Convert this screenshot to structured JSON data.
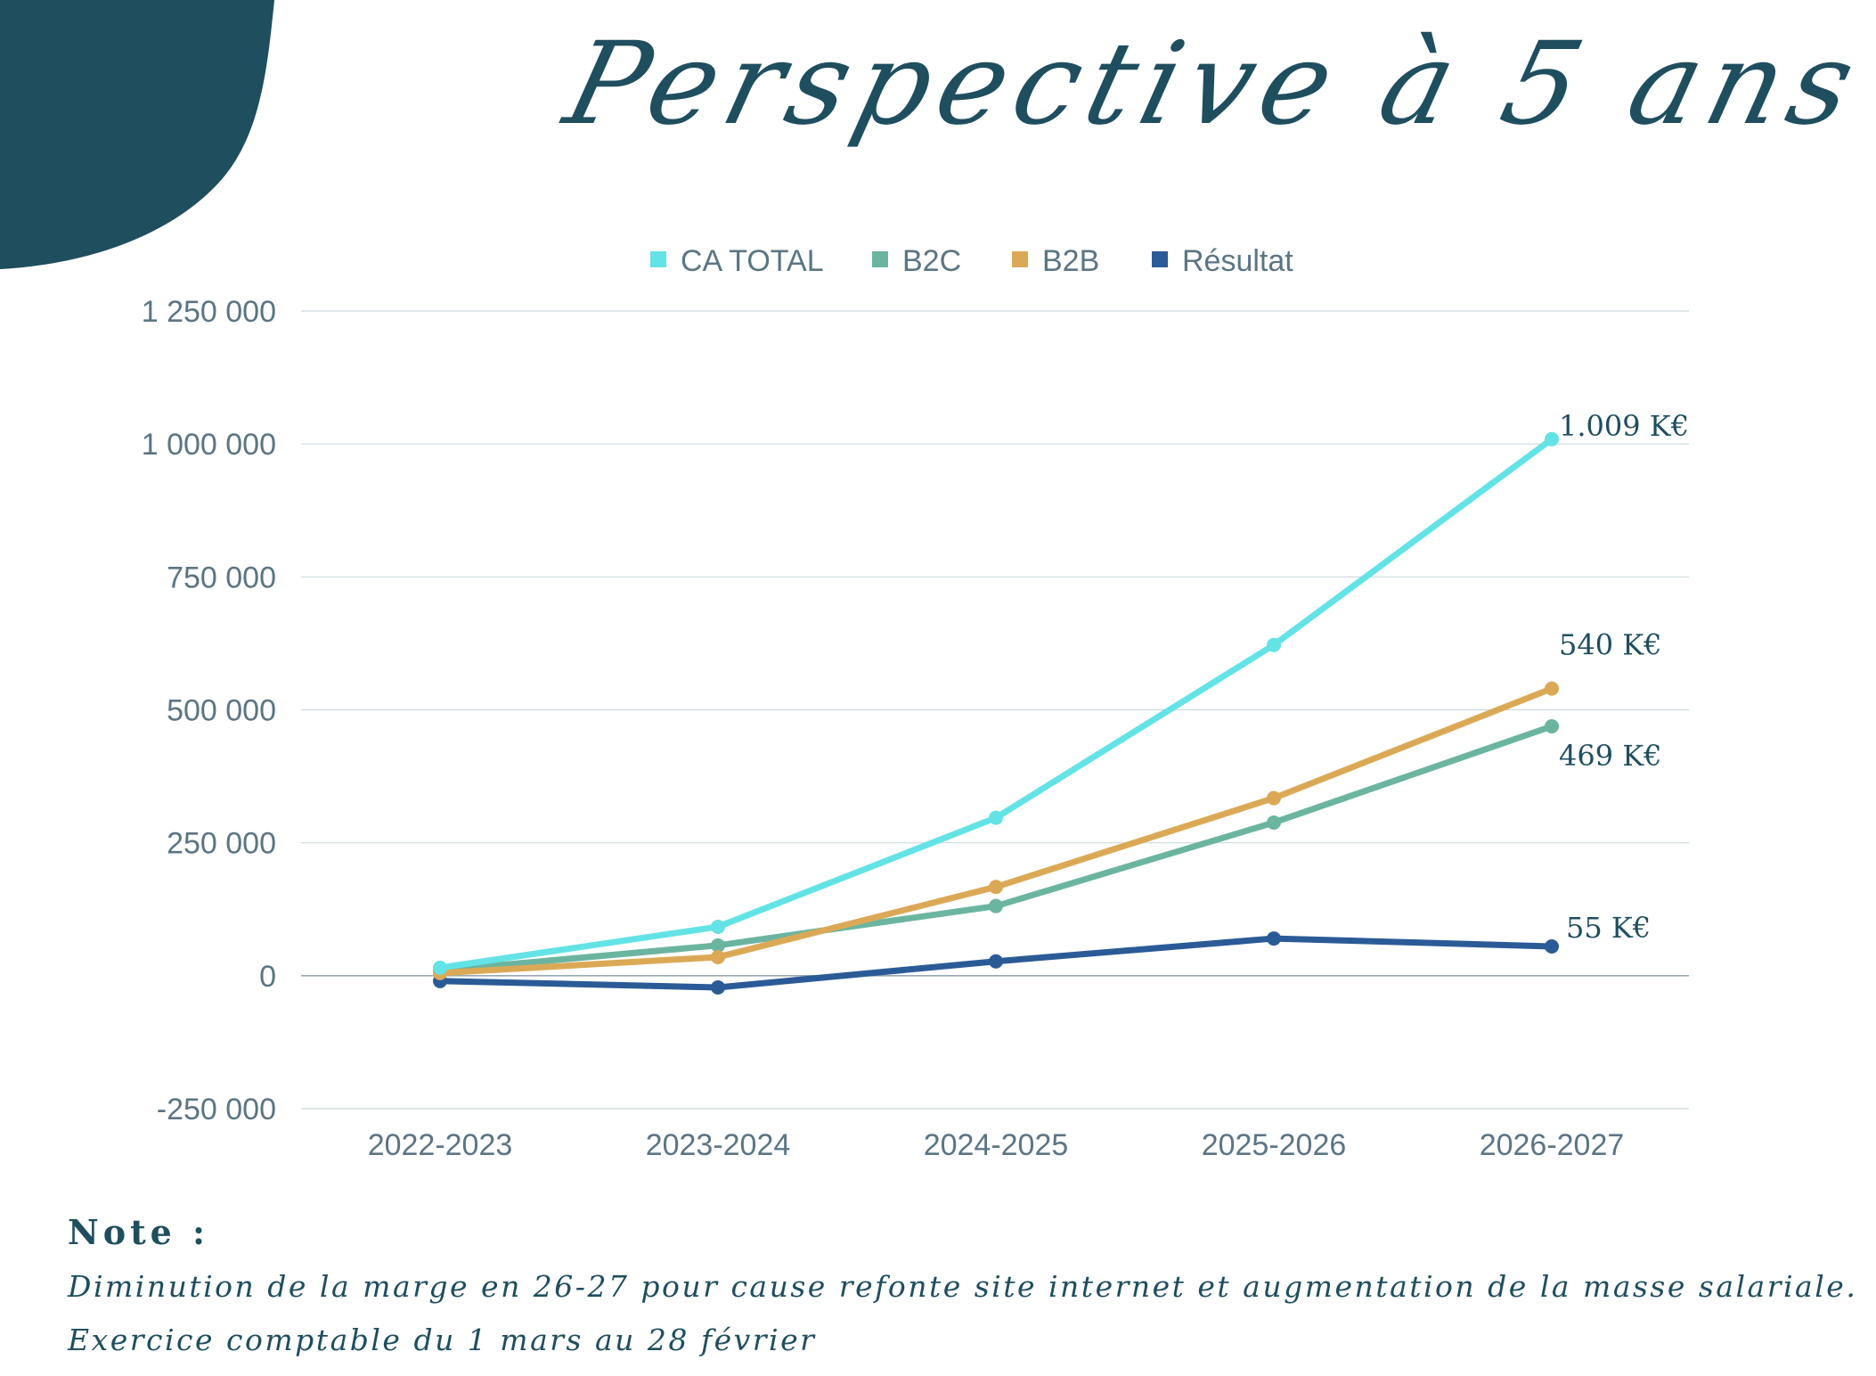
{
  "title": "Perspective à 5 ans",
  "colors": {
    "deco_blob": "#1f4e5f",
    "title": "#1f4e5f",
    "axis_text": "#5b7584",
    "grid": "#ccdadd",
    "zero_line": "#9aa9b0",
    "label_text": "#1f4e5f"
  },
  "chart_data": {
    "type": "line",
    "categories": [
      "2022-2023",
      "2023-2024",
      "2024-2025",
      "2025-2026",
      "2026-2027"
    ],
    "ylim": [
      -250000,
      1250000
    ],
    "yticks": [
      1250000,
      1000000,
      750000,
      500000,
      250000,
      0,
      -250000
    ],
    "ytick_labels": [
      "1 250 000",
      "1 000 000",
      "750 000",
      "500 000",
      "250 000",
      "0",
      "-250 000"
    ],
    "grid": true,
    "legend_position": "top-center",
    "series": [
      {
        "name": "CA TOTAL",
        "color": "#63e3e5",
        "values": [
          15000,
          92000,
          297000,
          622000,
          1009000
        ]
      },
      {
        "name": "B2C",
        "color": "#6bb5a0",
        "values": [
          10000,
          57000,
          131000,
          288000,
          469000
        ]
      },
      {
        "name": "B2B",
        "color": "#dba956",
        "values": [
          5000,
          35000,
          167000,
          334000,
          540000
        ]
      },
      {
        "name": "Résultat",
        "color": "#2b5b97",
        "values": [
          -10000,
          -22000,
          27000,
          70000,
          55000
        ]
      }
    ],
    "annotations": [
      {
        "text": "1.009 K€",
        "series": "CA TOTAL"
      },
      {
        "text": "540 K€",
        "series": "B2B"
      },
      {
        "text": "469 K€",
        "series": "B2C"
      },
      {
        "text": "55 K€",
        "series": "Résultat"
      }
    ]
  },
  "note": {
    "heading": "Note :",
    "lines": [
      "Diminution de la  marge en 26-27 pour cause refonte site internet et augmentation de la masse salariale.",
      "Exercice comptable du 1 mars au 28 février"
    ]
  }
}
